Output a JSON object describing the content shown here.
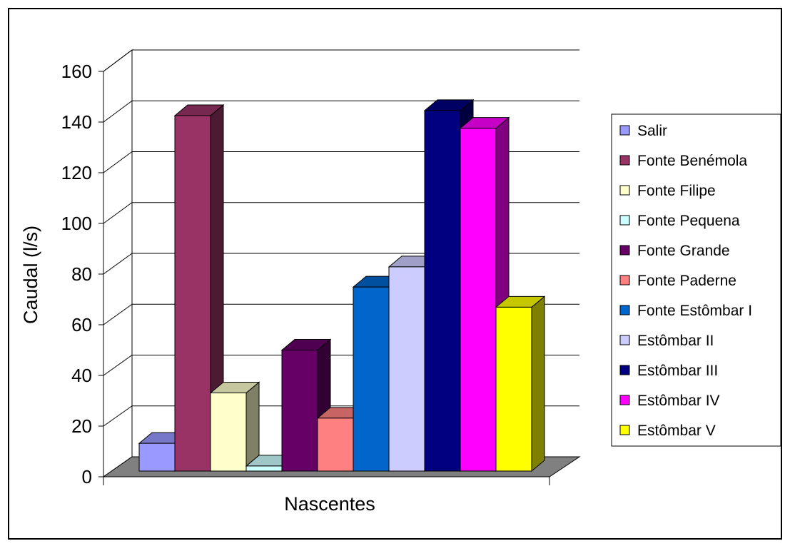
{
  "chart_data": {
    "type": "bar",
    "title": "",
    "xlabel": "Nascentes",
    "ylabel": "Caudal (l/s)",
    "ylim": [
      0,
      160
    ],
    "yticks": [
      "0",
      "20",
      "40",
      "60",
      "80",
      "100",
      "120",
      "140",
      "160"
    ],
    "grid": true,
    "legend_position": "right",
    "series": [
      {
        "name": "Salir",
        "value": 11,
        "color": "#9999ff"
      },
      {
        "name": "Fonte Benémola",
        "value": 141,
        "color": "#993366"
      },
      {
        "name": "Fonte Filipe",
        "value": 31,
        "color": "#ffffcc"
      },
      {
        "name": "Fonte Pequena",
        "value": 2,
        "color": "#ccffff"
      },
      {
        "name": "Fonte Grande",
        "value": 48,
        "color": "#660066"
      },
      {
        "name": "Fonte Paderne",
        "value": 21,
        "color": "#ff8080"
      },
      {
        "name": "Fonte Estômbar I",
        "value": 73,
        "color": "#0066cc"
      },
      {
        "name": "Estômbar II",
        "value": 81,
        "color": "#ccccff"
      },
      {
        "name": "Estômbar III",
        "value": 143,
        "color": "#000080"
      },
      {
        "name": "Estômbar IV",
        "value": 136,
        "color": "#ff00ff"
      },
      {
        "name": "Estômbar V",
        "value": 65,
        "color": "#ffff00"
      }
    ]
  }
}
